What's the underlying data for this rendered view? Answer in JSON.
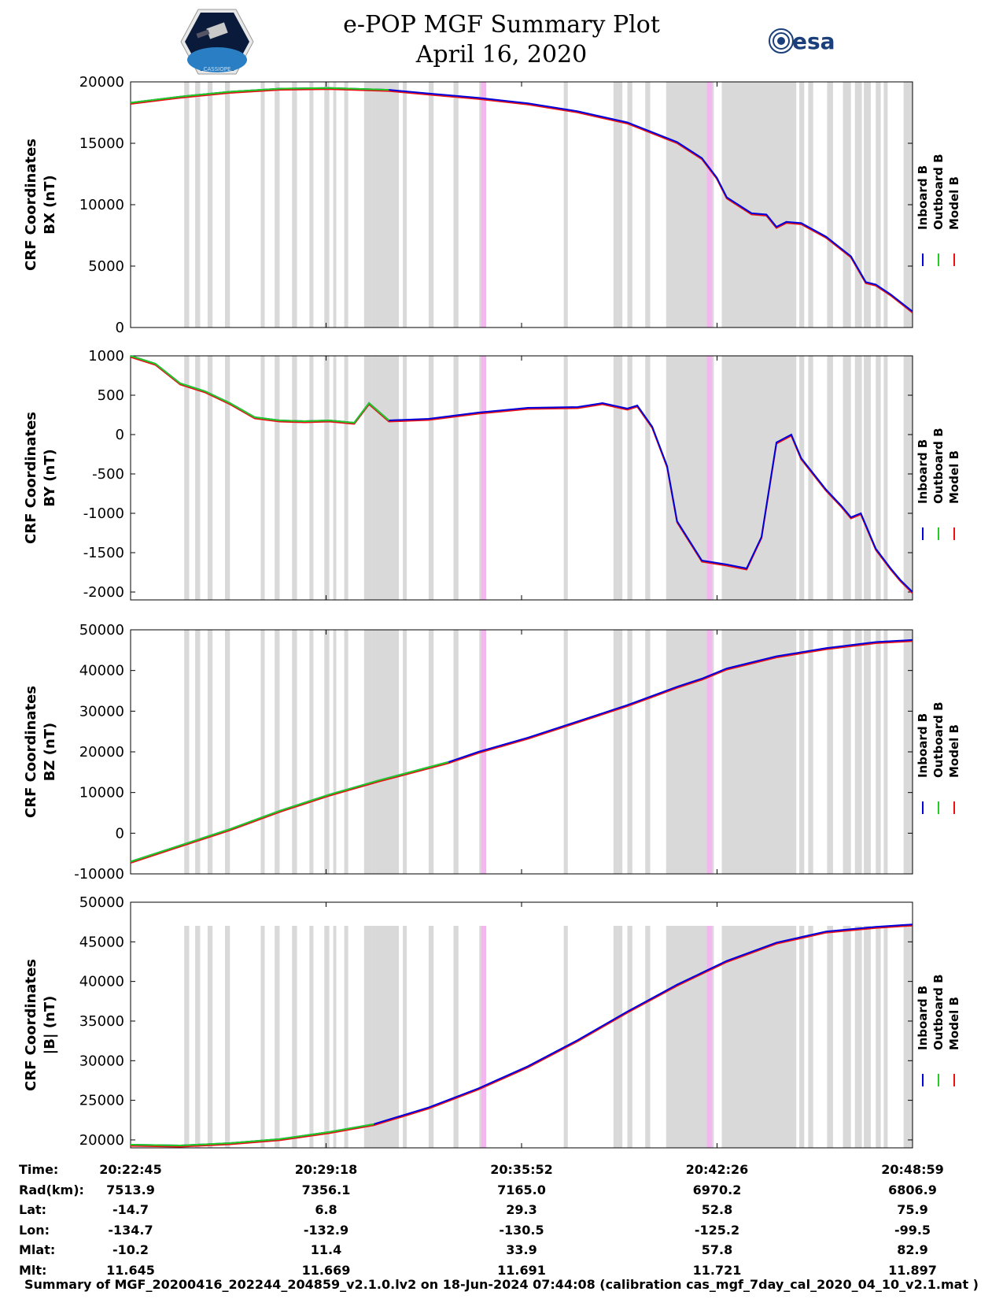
{
  "header": {
    "title_line1": "e-POP MGF Summary Plot",
    "title_line2": "April 16, 2020",
    "left_logo_text": "CASSIOPE",
    "right_logo_text": "esa"
  },
  "colors": {
    "inboard": "#0000dd",
    "outboard": "#22cc22",
    "model": "#ee1111",
    "gray_band": "#d9d9d9",
    "pink_band": "#f4b6ee"
  },
  "chart_data": [
    {
      "type": "line",
      "panel": "bx",
      "ylabel_line1": "CRF Coordinates",
      "ylabel_line2": "BX (nT)",
      "ylim": [
        0,
        20000
      ],
      "yticks": [
        0,
        5000,
        10000,
        15000,
        20000
      ],
      "ytick_labels": [
        "0",
        "5000",
        "10000",
        "15000",
        "20000"
      ],
      "xlim": [
        0,
        1574
      ],
      "legend": [
        "Inboard B",
        "Outboard B",
        "Model B"
      ],
      "green_until": 520,
      "x": [
        0,
        100,
        200,
        300,
        400,
        520,
        600,
        700,
        800,
        900,
        1000,
        1100,
        1150,
        1180,
        1200,
        1250,
        1280,
        1300,
        1320,
        1350,
        1400,
        1450,
        1480,
        1500,
        1530,
        1574
      ],
      "values": [
        18300,
        18800,
        19200,
        19450,
        19500,
        19350,
        19050,
        18700,
        18250,
        17600,
        16700,
        15100,
        13800,
        12200,
        10600,
        9300,
        9200,
        8200,
        8600,
        8500,
        7400,
        5800,
        3700,
        3500,
        2700,
        1300
      ]
    },
    {
      "type": "line",
      "panel": "by",
      "ylabel_line1": "CRF Coordinates",
      "ylabel_line2": "BY (nT)",
      "ylim": [
        -2100,
        1000
      ],
      "yticks": [
        -2000,
        -1500,
        -1000,
        -500,
        0,
        500,
        1000
      ],
      "ytick_labels": [
        "-2000",
        "-1500",
        "-1000",
        "-500",
        "0",
        "500",
        "1000"
      ],
      "xlim": [
        0,
        1574
      ],
      "legend": [
        "Inboard B",
        "Outboard B",
        "Model B"
      ],
      "green_until": 520,
      "x": [
        0,
        50,
        100,
        150,
        200,
        250,
        300,
        350,
        400,
        450,
        480,
        520,
        600,
        700,
        800,
        900,
        950,
        1000,
        1020,
        1050,
        1080,
        1100,
        1130,
        1150,
        1200,
        1240,
        1270,
        1300,
        1330,
        1350,
        1400,
        1430,
        1450,
        1470,
        1500,
        1530,
        1550,
        1574
      ],
      "values": [
        1000,
        900,
        650,
        550,
        400,
        220,
        180,
        170,
        180,
        150,
        400,
        180,
        200,
        280,
        340,
        350,
        400,
        330,
        370,
        100,
        -400,
        -1100,
        -1400,
        -1600,
        -1650,
        -1700,
        -1300,
        -100,
        0,
        -300,
        -700,
        -900,
        -1050,
        -1000,
        -1450,
        -1700,
        -1850,
        -2000
      ]
    },
    {
      "type": "line",
      "panel": "bz",
      "ylabel_line1": "CRF Coordinates",
      "ylabel_line2": "BZ (nT)",
      "ylim": [
        -10000,
        50000
      ],
      "yticks": [
        -10000,
        0,
        10000,
        20000,
        30000,
        40000,
        50000
      ],
      "ytick_labels": [
        "-10000",
        "0",
        "10000",
        "20000",
        "30000",
        "40000",
        "50000"
      ],
      "xlim": [
        0,
        1574
      ],
      "legend": [
        "Inboard B",
        "Outboard B",
        "Model B"
      ],
      "green_until": 640,
      "x": [
        0,
        100,
        200,
        300,
        400,
        500,
        640,
        700,
        800,
        900,
        1000,
        1100,
        1150,
        1200,
        1300,
        1400,
        1500,
        1574
      ],
      "values": [
        -7000,
        -3000,
        1000,
        5500,
        9500,
        13000,
        17500,
        20000,
        23500,
        27500,
        31500,
        36000,
        38000,
        40500,
        43500,
        45500,
        47000,
        47500
      ]
    },
    {
      "type": "line",
      "panel": "b_magnitude",
      "ylabel_line1": "CRF Coordinates",
      "ylabel_line2": "|B| (nT)",
      "ylim": [
        19000,
        50000
      ],
      "yticks": [
        20000,
        25000,
        30000,
        35000,
        40000,
        45000,
        50000
      ],
      "ytick_labels": [
        "20000",
        "25000",
        "30000",
        "35000",
        "40000",
        "45000",
        "50000"
      ],
      "xlim": [
        0,
        1574
      ],
      "legend": [
        "Inboard B",
        "Outboard B",
        "Model B"
      ],
      "green_until": 490,
      "x": [
        0,
        100,
        200,
        300,
        400,
        490,
        600,
        700,
        800,
        900,
        1000,
        1100,
        1200,
        1300,
        1400,
        1500,
        1574
      ],
      "values": [
        19400,
        19300,
        19600,
        20100,
        21000,
        22000,
        24100,
        26500,
        29300,
        32600,
        36200,
        39600,
        42600,
        44900,
        46300,
        46900,
        47200
      ]
    }
  ],
  "band_ranges": {
    "gray": [
      [
        108,
        118
      ],
      [
        130,
        140
      ],
      [
        155,
        165
      ],
      [
        190,
        200
      ],
      [
        262,
        270
      ],
      [
        290,
        300
      ],
      [
        325,
        335
      ],
      [
        360,
        368
      ],
      [
        390,
        400
      ],
      [
        408,
        414
      ],
      [
        430,
        438
      ],
      [
        470,
        486
      ],
      [
        486,
        540
      ],
      [
        548,
        556
      ],
      [
        600,
        610
      ],
      [
        650,
        660
      ],
      [
        702,
        712
      ],
      [
        872,
        880
      ],
      [
        972,
        990
      ],
      [
        1000,
        1010
      ],
      [
        1036,
        1046
      ],
      [
        1078,
        1160
      ],
      [
        1160,
        1174
      ],
      [
        1190,
        1340
      ],
      [
        1346,
        1356
      ],
      [
        1364,
        1374
      ],
      [
        1402,
        1414
      ],
      [
        1434,
        1450
      ],
      [
        1458,
        1472
      ],
      [
        1476,
        1490
      ],
      [
        1500,
        1510
      ],
      [
        1516,
        1524
      ],
      [
        1556,
        1574
      ]
    ],
    "pink": [
      [
        706,
        716
      ],
      [
        1160,
        1170
      ]
    ]
  },
  "time_axis": {
    "ticks": [
      "20:22:45",
      "20:29:18",
      "20:35:52",
      "20:42:26",
      "20:48:59"
    ]
  },
  "table": {
    "rows": [
      {
        "label": "Time:",
        "values": [
          "20:22:45",
          "20:29:18",
          "20:35:52",
          "20:42:26",
          "20:48:59"
        ]
      },
      {
        "label": "Rad(km):",
        "values": [
          "7513.9",
          "7356.1",
          "7165.0",
          "6970.2",
          "6806.9"
        ]
      },
      {
        "label": "Lat:",
        "values": [
          "-14.7",
          "6.8",
          "29.3",
          "52.8",
          "75.9"
        ]
      },
      {
        "label": "Lon:",
        "values": [
          "-134.7",
          "-132.9",
          "-130.5",
          "-125.2",
          "-99.5"
        ]
      },
      {
        "label": "Mlat:",
        "values": [
          "-10.2",
          "11.4",
          "33.9",
          "57.8",
          "82.9"
        ]
      },
      {
        "label": "Mlt:",
        "values": [
          "11.645",
          "11.669",
          "11.691",
          "11.721",
          "11.897"
        ]
      }
    ]
  },
  "footer": {
    "text": "Summary of MGF_20200416_202244_204859_v2.1.0.lv2 on 18-Jun-2024 07:44:08 (calibration cas_mgf_7day_cal_2020_04_10_v2.1.mat )"
  }
}
